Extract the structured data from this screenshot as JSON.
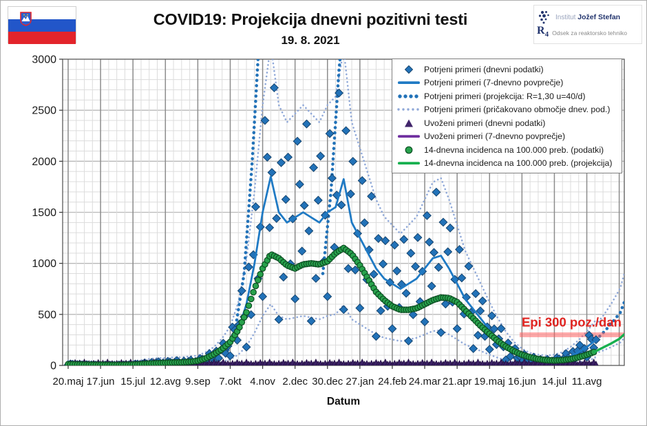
{
  "page": {
    "title": "COVID19: Projekcija dnevni pozitivni testi",
    "subtitle": "19. 8. 2021"
  },
  "branding": {
    "flag": "slovenia-flag",
    "institute_prefix": "Institut",
    "institute_name": "Jožef Stefan",
    "dept_code": "R",
    "dept_sub": "4",
    "dept_name": "Odsek za reaktorsko tehniko"
  },
  "chart_data": {
    "type": "line",
    "title": "COVID19: Projekcija dnevni pozitivni testi",
    "subtitle": "19. 8. 2021",
    "xlabel": "Datum",
    "ylabel": "",
    "ylim": [
      0,
      3000
    ],
    "y_ticks": [
      0,
      500,
      1000,
      1500,
      2000,
      2500,
      3000
    ],
    "x_tick_labels": [
      "20.maj",
      "17.jun",
      "15.jul",
      "12.avg",
      "9.sep",
      "7.okt",
      "4.nov",
      "2.dec",
      "30.dec",
      "27.jan",
      "24.feb",
      "24.mar",
      "21.apr",
      "19.maj",
      "16.jun",
      "14.jul",
      "11.avg"
    ],
    "x_tick_days": [
      0,
      28,
      56,
      84,
      112,
      140,
      168,
      196,
      224,
      252,
      280,
      308,
      336,
      364,
      392,
      420,
      448
    ],
    "x_day_max": 483,
    "grid": {
      "x_minor_step_days": 7,
      "x_major_step_days": 28,
      "y_minor_step": 100,
      "y_major_step": 500,
      "minor_color": "#dcdcdc",
      "major_color_v": "#8c8c8c",
      "major_color_h": "#b8b8b8",
      "border_color": "#595959"
    },
    "annotation": {
      "text": "Epi 300 poz./dan",
      "value": 300,
      "start_day": 390,
      "text_color": "#e02420",
      "band_color": "rgba(255,85,85,0.5)"
    },
    "legend": [
      {
        "marker": "diamond",
        "label": "Potrjeni primeri (dnevni podatki)",
        "color": "#2272b8",
        "edge": "#16456f"
      },
      {
        "marker": "line",
        "label": "Potrjeni primeri (7-dnevno povprečje)",
        "color": "#1f7ac4"
      },
      {
        "marker": "dots-large",
        "label": "Potrjeni primeri (projekcija: R=1,30 u=40/d)",
        "color": "#2272b8"
      },
      {
        "marker": "dots-small",
        "label": "Potrjeni primeri (pričakovano območje dnev. pod.)",
        "color": "#8fa8d8"
      },
      {
        "marker": "triangle",
        "label": "Uvoženi primeri (dnevni podatki)",
        "color": "#41256b"
      },
      {
        "marker": "line",
        "label": "Uvoženi primeri (7-dnevno povprečje)",
        "color": "#7030a0"
      },
      {
        "marker": "circle",
        "label": "14-dnevna incidenca na 100.000 preb. (podatki)",
        "color": "#28a24c",
        "edge": "#0b4d22"
      },
      {
        "marker": "line",
        "label": "14-dnevna incidenca na 100.000 preb. (projekcija)",
        "color": "#17b04f"
      }
    ],
    "series": {
      "week_step_days": 7,
      "confirmed_avg": [
        10,
        8,
        6,
        5,
        4,
        3,
        3,
        5,
        8,
        12,
        20,
        25,
        25,
        30,
        30,
        35,
        40,
        60,
        90,
        140,
        210,
        350,
        600,
        1000,
        1500,
        1850,
        1500,
        1400,
        1450,
        1500,
        1450,
        1400,
        1500,
        1550,
        1825,
        1400,
        1250,
        1100,
        950,
        850,
        800,
        750,
        800,
        850,
        950,
        1050,
        1075,
        950,
        800,
        650,
        550,
        450,
        350,
        260,
        180,
        120,
        80,
        55,
        45,
        40,
        45,
        60,
        90,
        130,
        180,
        240
      ],
      "incidence_avg": [
        12,
        10,
        8,
        7,
        6,
        5,
        5,
        6,
        8,
        12,
        18,
        22,
        25,
        28,
        30,
        35,
        45,
        70,
        110,
        160,
        230,
        350,
        520,
        750,
        950,
        1090,
        1050,
        980,
        950,
        990,
        1000,
        990,
        1020,
        1100,
        1150,
        1090,
        980,
        850,
        720,
        640,
        580,
        545,
        545,
        560,
        600,
        640,
        665,
        660,
        620,
        540,
        460,
        380,
        310,
        240,
        185,
        140,
        105,
        80,
        62,
        52,
        48,
        52,
        62,
        80,
        105,
        135
      ],
      "data_end_day": 456,
      "incidence_projection": {
        "days": [
          455,
          462,
          469,
          476,
          483
        ],
        "values": [
          135,
          175,
          215,
          260,
          305
        ]
      },
      "projection_center_segments": [
        {
          "days": [
            138,
            145,
            152,
            159,
            166
          ],
          "values": [
            150,
            400,
            900,
            2000,
            3400
          ]
        },
        {
          "days": [
            220,
            227,
            234,
            240
          ],
          "values": [
            900,
            1700,
            2900,
            3600
          ]
        },
        {
          "days": [
            456,
            463,
            470,
            477,
            483
          ],
          "values": [
            250,
            330,
            420,
            520,
            620
          ]
        }
      ],
      "envelope": {
        "upper_mult": 1.68,
        "upper_add": 30,
        "lower_mult": 0.33,
        "lower_add": -10
      },
      "envelope_projection": {
        "days": [
          456,
          463,
          470,
          477,
          483
        ],
        "upper": [
          400,
          500,
          620,
          760,
          900
        ],
        "lower": [
          120,
          150,
          185,
          225,
          270
        ]
      },
      "confirmed_scatter": {
        "step_days": 2,
        "multipliers": [
          0.45,
          1.5,
          1.2,
          0.75,
          1.05,
          1.6,
          0.9,
          0.3,
          1.35,
          0.6,
          1.15,
          1.45,
          0.7,
          1.0
        ]
      },
      "imported_avg_value": 12,
      "imported_scatter": {
        "step_days": 2,
        "values_cycle": [
          4,
          18,
          8,
          26,
          12,
          20,
          6,
          30,
          10,
          16
        ]
      }
    },
    "colors": {
      "confirmed_scatter": "#2272b8",
      "confirmed_scatter_edge": "#16456f",
      "confirmed_avg": "#1f7ac4",
      "projection_center": "#2272b8",
      "envelope": "#8fa8d8",
      "imported": "#3a2064",
      "imported_line": "#4b2277",
      "incidence": "#28a24c",
      "incidence_edge": "#0b4d22",
      "incidence_projection": "#17b04f",
      "axis_text": "#1a1a1a"
    }
  }
}
